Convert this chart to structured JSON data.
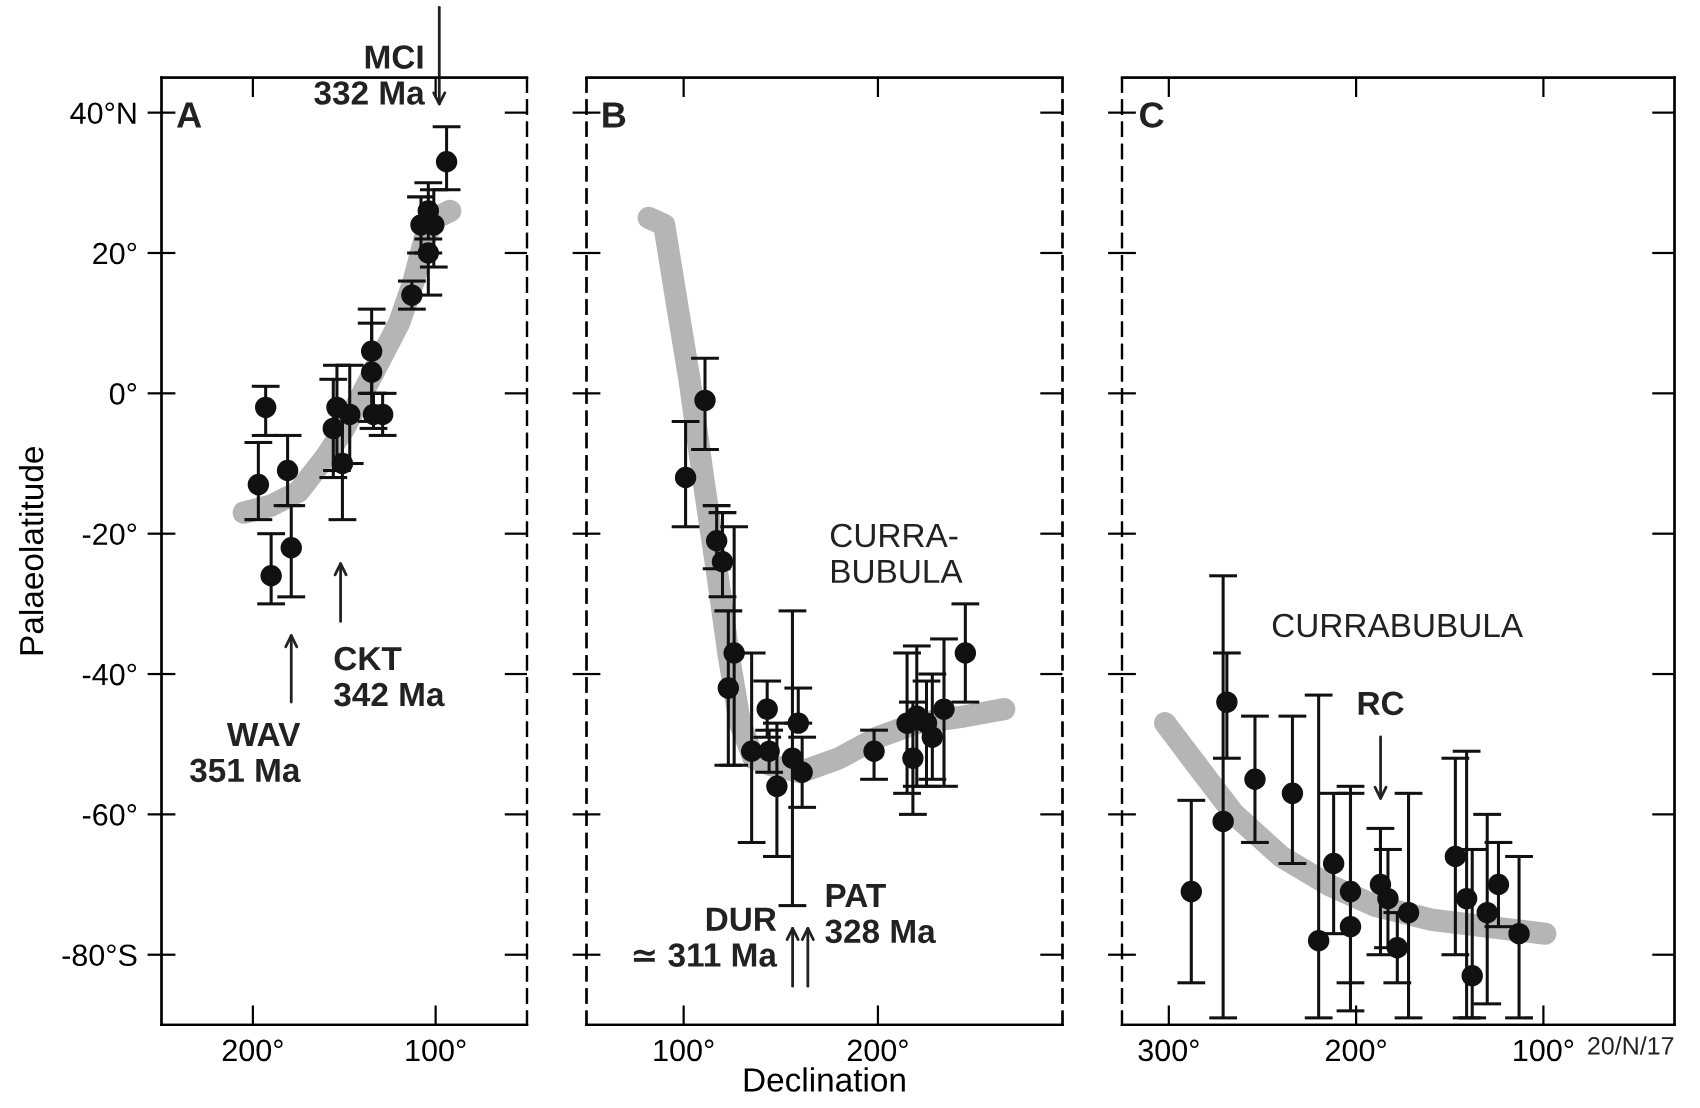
{
  "chart_data": [
    {
      "type": "scatter",
      "ylabel": "Palaeolatitude",
      "xlim": [
        250,
        50
      ],
      "ylim": [
        -90,
        45
      ],
      "xticks": [
        {
          "value": 200,
          "label": "200°"
        },
        {
          "value": 100,
          "label": "100°"
        }
      ],
      "yticks": [
        {
          "value": 40,
          "label": "40°N"
        },
        {
          "value": 20,
          "label": "20°"
        },
        {
          "value": 0,
          "label": "0°"
        },
        {
          "value": -20,
          "label": "-20°"
        },
        {
          "value": -40,
          "label": "-40°"
        },
        {
          "value": -60,
          "label": "-60°"
        },
        {
          "value": -80,
          "label": "-80°S"
        }
      ],
      "annotations": [
        "A",
        "MCI\n332 Ma",
        "CKT\n342 Ma",
        "WAV\n351 Ma"
      ],
      "series": [
        {
          "type": "line",
          "color": "#b5b5b5",
          "x": [
            205,
            190,
            175,
            160,
            150,
            140,
            130,
            120,
            112,
            106,
            100,
            92
          ],
          "values": [
            -17,
            -16,
            -14,
            -9,
            -5,
            0,
            5,
            10,
            16,
            22,
            25,
            26
          ]
        },
        {
          "color": "#111111",
          "marker": "circle",
          "x": [
            193,
            197,
            190,
            181,
            179,
            156,
            154,
            151,
            147,
            135,
            135,
            134,
            129,
            113,
            108,
            104,
            101,
            104,
            94
          ],
          "values": [
            -2,
            -13,
            -26,
            -11,
            -22,
            -5,
            -2,
            -10,
            -3,
            6,
            3,
            -3,
            -3,
            14,
            24,
            26,
            24,
            20,
            33
          ],
          "errors": [
            [
              -6,
              1
            ],
            [
              -18,
              -7
            ],
            [
              -30,
              -20
            ],
            [
              -16,
              -6
            ],
            [
              -29,
              -16
            ],
            [
              -12,
              2
            ],
            [
              -11,
              4
            ],
            [
              -18,
              -2
            ],
            [
              -10,
              4
            ],
            [
              0,
              12
            ],
            [
              -4,
              10
            ],
            [
              -5,
              0
            ],
            [
              -6,
              0
            ],
            [
              12,
              16
            ],
            [
              20,
              28
            ],
            [
              22,
              30
            ],
            [
              18,
              29
            ],
            [
              14,
              20
            ],
            [
              29,
              38
            ]
          ]
        }
      ]
    },
    {
      "type": "scatter",
      "xlabel": "Declination",
      "xlim": [
        50,
        295
      ],
      "ylim": [
        -90,
        45
      ],
      "tick_labels": "x",
      "xticks": [
        {
          "value": 100,
          "label": "100°"
        },
        {
          "value": 200,
          "label": "200°"
        }
      ],
      "yticks": [
        40,
        20,
        0,
        -20,
        -40,
        -60,
        -80
      ],
      "annotations": [
        "B",
        "CURRA-\nBUBULA",
        "DUR\n≃ 311 Ma",
        "PAT\n328 Ma"
      ],
      "series": [
        {
          "type": "line",
          "color": "#b5b5b5",
          "x": [
            82,
            90,
            97,
            103,
            110,
            117,
            123,
            129,
            136,
            145,
            160,
            180,
            200,
            220,
            245,
            265
          ],
          "values": [
            25,
            24,
            12,
            2,
            -12,
            -25,
            -37,
            -47,
            -52,
            -53,
            -54,
            -52,
            -49,
            -47,
            -46,
            -45
          ]
        },
        {
          "color": "#111111",
          "marker": "circle",
          "x": [
            101,
            111,
            117,
            120,
            126,
            123,
            135,
            143,
            144,
            148,
            159,
            156,
            161,
            198,
            218,
            215,
            220,
            225,
            228,
            234,
            245
          ],
          "values": [
            -12,
            -1,
            -21,
            -24,
            -37,
            -42,
            -51,
            -45,
            -51,
            -56,
            -47,
            -52,
            -54,
            -51,
            -52,
            -47,
            -46,
            -47,
            -49,
            -45,
            -37
          ],
          "errors": [
            [
              -19,
              -4
            ],
            [
              -8,
              5
            ],
            [
              -25,
              -16
            ],
            [
              -29,
              -17
            ],
            [
              -53,
              -19
            ],
            [
              -53,
              -31
            ],
            [
              -64,
              -37
            ],
            [
              -49,
              -41
            ],
            [
              -54,
              -48
            ],
            [
              -66,
              -47
            ],
            [
              -47,
              -42
            ],
            [
              -73,
              -31
            ],
            [
              -59,
              -49
            ],
            [
              -55,
              -48
            ],
            [
              -60,
              -44
            ],
            [
              -57,
              -37
            ],
            [
              -56,
              -36
            ],
            [
              -56,
              -41
            ],
            [
              -55,
              -40
            ],
            [
              -56,
              -35
            ],
            [
              -44,
              -30
            ]
          ]
        }
      ]
    },
    {
      "type": "scatter",
      "xlim": [
        325,
        30
      ],
      "ylim": [
        -90,
        45
      ],
      "tick_labels": "x",
      "xticks": [
        {
          "value": 300,
          "label": "300°"
        },
        {
          "value": 200,
          "label": "200°"
        },
        {
          "value": 100,
          "label": "100°"
        }
      ],
      "yticks": [
        40,
        20,
        0,
        -20,
        -40,
        -60,
        -80
      ],
      "annotations": [
        "C",
        "CURRABUBULA",
        "RC",
        "20/N/17"
      ],
      "series": [
        {
          "type": "line",
          "color": "#b5b5b5",
          "x": [
            302,
            285,
            265,
            240,
            215,
            190,
            160,
            130,
            99
          ],
          "values": [
            -47,
            -53,
            -60,
            -66,
            -70,
            -73,
            -75,
            -76,
            -77
          ]
        },
        {
          "color": "#111111",
          "marker": "circle",
          "x": [
            288,
            271,
            269,
            254,
            234,
            220,
            212,
            203,
            203,
            187,
            183,
            178,
            172,
            147,
            141,
            138,
            130,
            124,
            113
          ],
          "values": [
            -71,
            -61,
            -44,
            -55,
            -57,
            -78,
            -67,
            -71,
            -76,
            -70,
            -72,
            -79,
            -74,
            -66,
            -72,
            -83,
            -74,
            -70,
            -77
          ],
          "errors": [
            [
              -84,
              -58
            ],
            [
              -89,
              -26
            ],
            [
              -52,
              -37
            ],
            [
              -64,
              -46
            ],
            [
              -67,
              -46
            ],
            [
              -89,
              -43
            ],
            [
              -77,
              -57
            ],
            [
              -88,
              -56
            ],
            [
              -84,
              -57
            ],
            [
              -80,
              -62
            ],
            [
              -79,
              -65
            ],
            [
              -84,
              -74
            ],
            [
              -89,
              -57
            ],
            [
              -80,
              -52
            ],
            [
              -89,
              -51
            ],
            [
              -89,
              -65
            ],
            [
              -87,
              -60
            ],
            [
              -76,
              -64
            ],
            [
              -89,
              -66
            ]
          ]
        }
      ]
    }
  ]
}
